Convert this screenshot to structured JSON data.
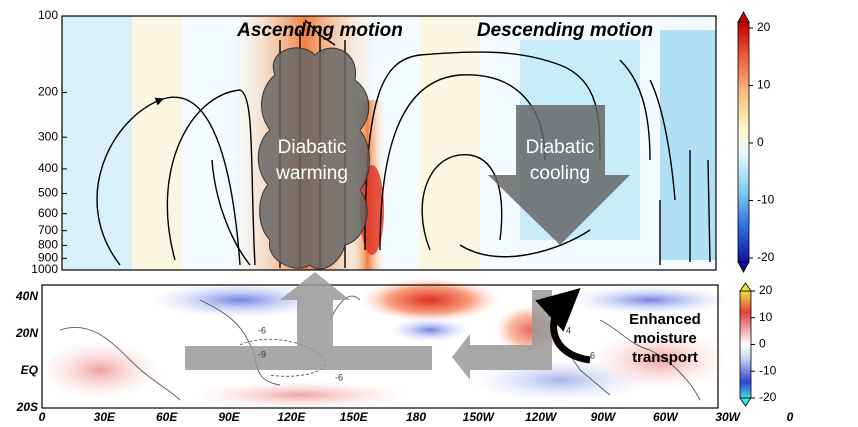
{
  "upper_panel": {
    "headings": [
      "Ascending motion",
      "Descending motion"
    ],
    "warming_label": [
      "Diabatic",
      "warming"
    ],
    "cooling_label": [
      "Diabatic",
      "cooling"
    ],
    "yticks": [
      100,
      200,
      300,
      400,
      500,
      600,
      700,
      800,
      900,
      1000
    ],
    "ylim": [
      100,
      1000
    ],
    "log_scale": true,
    "colorbar": {
      "lim": [
        -20,
        20
      ],
      "ticks": [
        20,
        10,
        0,
        -10,
        -20
      ]
    }
  },
  "lower_panel": {
    "lat_labels": [
      "40N",
      "20N",
      "EQ",
      "20S"
    ],
    "lon_labels": [
      "0",
      "30E",
      "60E",
      "90E",
      "120E",
      "150E",
      "180",
      "150W",
      "120W",
      "90W",
      "60W",
      "30W",
      "0"
    ],
    "contour_labels": [
      "-6",
      "-9",
      "-6",
      "4",
      "6"
    ],
    "moisture_label": [
      "Enhanced",
      "moisture",
      "transport"
    ],
    "colorbar": {
      "lim": [
        -20,
        20
      ],
      "ticks": [
        20,
        10,
        0,
        -10,
        -20
      ]
    }
  }
}
